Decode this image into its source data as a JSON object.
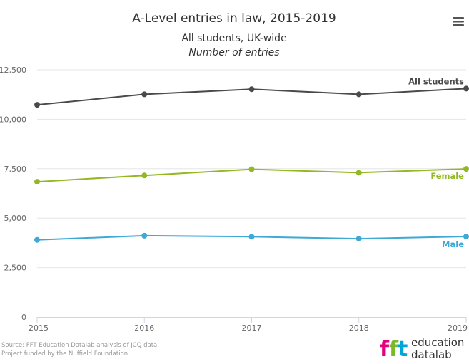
{
  "chart_data": {
    "type": "line",
    "title": "A-Level entries in law, 2015-2019",
    "subtitle": "All students, UK-wide",
    "subtitle2": "Number of entries",
    "x": [
      "2015",
      "2016",
      "2017",
      "2018",
      "2019"
    ],
    "ylim": [
      0,
      12500
    ],
    "yticks": [
      0,
      2500,
      5000,
      7500,
      10000,
      12500
    ],
    "ytick_labels": [
      "0",
      "2,500",
      "5,000",
      "7,500",
      "10,000",
      "12,500"
    ],
    "grid": true,
    "series": [
      {
        "name": "All students",
        "color": "#4a4a4a",
        "values": [
          10730,
          11260,
          11520,
          11260,
          11550
        ]
      },
      {
        "name": "Female",
        "color": "#93b824",
        "values": [
          6840,
          7160,
          7470,
          7300,
          7490
        ]
      },
      {
        "name": "Male",
        "color": "#3fa9d6",
        "values": [
          3900,
          4110,
          4060,
          3960,
          4070
        ]
      }
    ]
  },
  "credits": {
    "line1": "Source: FFT Education Datalab analysis of JCQ data",
    "line2": "Project funded by the Nuffield Foundation"
  },
  "logo": {
    "mark": "fft",
    "word1": "education",
    "word2": "datalab",
    "colors": [
      "#e5007e",
      "#7ab929",
      "#00a6d6"
    ]
  },
  "menu": {
    "icon": "hamburger-menu-icon"
  }
}
